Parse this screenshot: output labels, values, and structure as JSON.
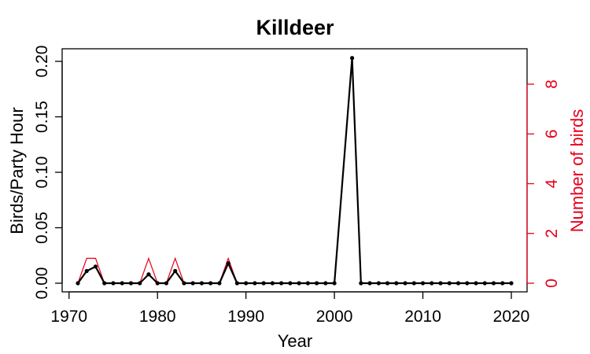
{
  "chart_data": {
    "type": "line",
    "title": "Killdeer",
    "xlabel": "Year",
    "ylabel": "Birds/Party Hour",
    "y2label": "Number of birds",
    "xlim": [
      1970,
      2020
    ],
    "ylim": [
      0,
      0.2
    ],
    "y2lim": [
      0,
      8
    ],
    "x_ticks": [
      1970,
      1980,
      1990,
      2000,
      2010,
      2020
    ],
    "y_ticks": [
      "0.00",
      "0.05",
      "0.10",
      "0.15",
      "0.20"
    ],
    "y2_ticks": [
      "0",
      "2",
      "4",
      "6",
      "8"
    ],
    "grid": false,
    "colors": {
      "birds_per_party_hour": "#000000",
      "number_of_birds": "#e8001c"
    },
    "x": [
      1971,
      1972,
      1973,
      1974,
      1975,
      1976,
      1977,
      1978,
      1979,
      1980,
      1981,
      1982,
      1983,
      1984,
      1985,
      1986,
      1987,
      1988,
      1989,
      1990,
      1991,
      1992,
      1993,
      1994,
      1995,
      1996,
      1997,
      1998,
      1999,
      2000,
      2002,
      2003,
      2004,
      2005,
      2006,
      2007,
      2008,
      2009,
      2010,
      2011,
      2012,
      2013,
      2014,
      2015,
      2016,
      2017,
      2018,
      2019,
      2020
    ],
    "series": [
      {
        "axis": "left",
        "values": [
          0,
          0.011,
          0.015,
          0,
          0,
          0,
          0,
          0,
          0.008,
          0,
          0,
          0.011,
          0,
          0,
          0,
          0,
          0,
          0.018,
          0,
          0,
          0,
          0,
          0,
          0,
          0,
          0,
          0,
          0,
          0,
          0,
          0.203,
          0,
          0,
          0,
          0,
          0,
          0,
          0,
          0,
          0,
          0,
          0,
          0,
          0,
          0,
          0,
          0,
          0,
          0
        ]
      },
      {
        "axis": "right",
        "values": [
          0,
          1,
          1,
          0,
          0,
          0,
          0,
          0,
          1,
          0,
          0,
          1,
          0,
          0,
          0,
          0,
          0,
          1,
          0,
          0,
          0,
          0,
          0,
          0,
          0,
          0,
          0,
          0,
          0,
          0,
          9,
          0,
          0,
          0,
          0,
          0,
          0,
          0,
          0,
          0,
          0,
          0,
          0,
          0,
          0,
          0,
          0,
          0,
          0
        ]
      }
    ]
  }
}
